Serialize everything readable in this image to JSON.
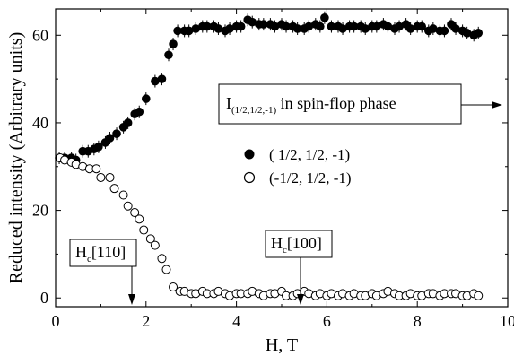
{
  "chart_data": {
    "type": "scatter",
    "xlabel": "H, T",
    "ylabel": "Reduced intensity (Arbitrary units)",
    "xlim": [
      0,
      10
    ],
    "ylim": [
      -2,
      66
    ],
    "xticks": [
      0,
      2,
      4,
      6,
      8,
      10
    ],
    "yticks": [
      0,
      20,
      40,
      60
    ],
    "grid": false,
    "legend_position": "center-right",
    "series": [
      {
        "name": "( 1/2, 1/2, -1)",
        "marker": "filled-circle",
        "x": [
          0.08,
          0.2,
          0.35,
          0.45,
          0.6,
          0.72,
          0.85,
          0.95,
          1.1,
          1.2,
          1.35,
          1.5,
          1.6,
          1.75,
          1.85,
          2.0,
          2.2,
          2.35,
          2.5,
          2.6,
          2.7,
          2.85,
          2.95,
          3.1,
          3.25,
          3.35,
          3.5,
          3.6,
          3.75,
          3.85,
          4.0,
          4.1,
          4.25,
          4.35,
          4.5,
          4.6,
          4.75,
          4.85,
          5.0,
          5.1,
          5.25,
          5.35,
          5.5,
          5.6,
          5.75,
          5.85,
          5.95,
          6.1,
          6.25,
          6.35,
          6.5,
          6.6,
          6.75,
          6.85,
          7.0,
          7.1,
          7.25,
          7.35,
          7.5,
          7.6,
          7.75,
          7.85,
          8.0,
          8.1,
          8.25,
          8.35,
          8.5,
          8.6,
          8.75,
          8.85,
          9.0,
          9.1,
          9.25,
          9.35
        ],
        "y": [
          32,
          32,
          32,
          31.5,
          33.5,
          33.5,
          34,
          34.5,
          35.5,
          36.5,
          37.5,
          39,
          40,
          42,
          42.5,
          45.5,
          49.5,
          50,
          55.5,
          58,
          61,
          61,
          61,
          61.5,
          62,
          62,
          62,
          61.5,
          61,
          61.5,
          62,
          62,
          63.5,
          63,
          62.5,
          62.5,
          62.5,
          62,
          62.5,
          62,
          62,
          61.5,
          61.5,
          62,
          62.5,
          62,
          64,
          62,
          62,
          61.5,
          62,
          62,
          62,
          61.5,
          62,
          62,
          62.5,
          62,
          61.5,
          62,
          62.5,
          61.5,
          62,
          62,
          61,
          61.5,
          61,
          61,
          62.5,
          61.5,
          61,
          60.5,
          60,
          60.5
        ]
      },
      {
        "name": "(-1/2, 1/2, -1)",
        "marker": "open-circle",
        "x": [
          0.1,
          0.2,
          0.35,
          0.45,
          0.6,
          0.75,
          0.9,
          1.0,
          1.2,
          1.3,
          1.5,
          1.6,
          1.75,
          1.85,
          1.95,
          2.1,
          2.2,
          2.35,
          2.45,
          2.6,
          2.75,
          2.85,
          3.0,
          3.1,
          3.25,
          3.35,
          3.5,
          3.6,
          3.75,
          3.85,
          4.0,
          4.1,
          4.25,
          4.35,
          4.5,
          4.6,
          4.75,
          4.85,
          5.0,
          5.1,
          5.25,
          5.35,
          5.5,
          5.6,
          5.75,
          5.85,
          6.0,
          6.1,
          6.25,
          6.35,
          6.5,
          6.6,
          6.75,
          6.85,
          7.0,
          7.1,
          7.25,
          7.35,
          7.5,
          7.6,
          7.75,
          7.85,
          8.0,
          8.1,
          8.25,
          8.35,
          8.5,
          8.6,
          8.75,
          8.85,
          9.0,
          9.1,
          9.25,
          9.35
        ],
        "y": [
          32,
          31.5,
          31,
          30.5,
          30,
          29.5,
          29.5,
          27.5,
          27.5,
          25,
          23.5,
          21,
          19.5,
          18,
          15.5,
          13.5,
          12,
          9,
          6.5,
          2.5,
          1.5,
          1.5,
          1,
          1,
          1.5,
          1,
          1,
          1.5,
          1,
          0.5,
          1,
          1,
          1,
          1.5,
          1,
          0.5,
          1,
          1,
          1.5,
          0.5,
          0.5,
          1,
          1.5,
          1,
          0.5,
          1,
          0.5,
          1,
          0.5,
          1,
          0.5,
          1,
          0.5,
          0.5,
          1,
          0.5,
          1,
          1.5,
          1,
          0.5,
          0.5,
          1,
          0.5,
          0.5,
          1,
          1,
          0.5,
          1,
          1,
          1,
          0.5,
          0.5,
          1,
          0.5
        ]
      }
    ],
    "annotations": [
      {
        "type": "boxed-label-arrow-down",
        "main": "H",
        "sub": "c",
        "tail": "[110]",
        "arrow_to_x": 1.72
      },
      {
        "type": "boxed-label-arrow-down",
        "main": "H",
        "sub": "c",
        "tail": "[100]",
        "arrow_to_x": 5.6
      },
      {
        "type": "boxed-label-arrow-right",
        "main": "I",
        "sub": "(1/2,1/2,-1)",
        "tail": " in spin-flop phase"
      }
    ]
  }
}
